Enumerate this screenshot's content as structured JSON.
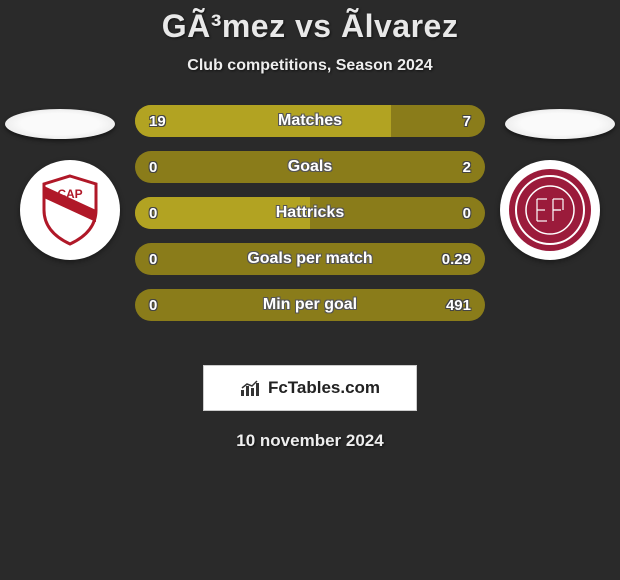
{
  "header": {
    "title": "GÃ³mez vs Ãlvarez",
    "subtitle": "Club competitions, Season 2024"
  },
  "bars": [
    {
      "label": "Matches",
      "left_val": "19",
      "right_val": "7",
      "left_pct": 73,
      "fill_color": "#b2a322",
      "bg_color": "#8a7c1a"
    },
    {
      "label": "Goals",
      "left_val": "0",
      "right_val": "2",
      "left_pct": 0,
      "fill_color": "#b2a322",
      "bg_color": "#8a7c1a"
    },
    {
      "label": "Hattricks",
      "left_val": "0",
      "right_val": "0",
      "left_pct": 50,
      "fill_color": "#b2a322",
      "bg_color": "#8a7c1a"
    },
    {
      "label": "Goals per match",
      "left_val": "0",
      "right_val": "0.29",
      "left_pct": 0,
      "fill_color": "#b2a322",
      "bg_color": "#8a7c1a"
    },
    {
      "label": "Min per goal",
      "left_val": "0",
      "right_val": "491",
      "left_pct": 0,
      "fill_color": "#b2a322",
      "bg_color": "#8a7c1a"
    }
  ],
  "badges": {
    "left": {
      "shield_fill": "#ffffff",
      "shield_stroke": "#b01828",
      "stripe": "#b01828",
      "text": "CAP"
    },
    "right": {
      "circle_fill": "#9b1b3b",
      "ring": "#ffffff"
    }
  },
  "footer": {
    "brand": "FcTables.com",
    "date": "10 november 2024"
  },
  "colors": {
    "page_bg": "#2a2a2a"
  }
}
